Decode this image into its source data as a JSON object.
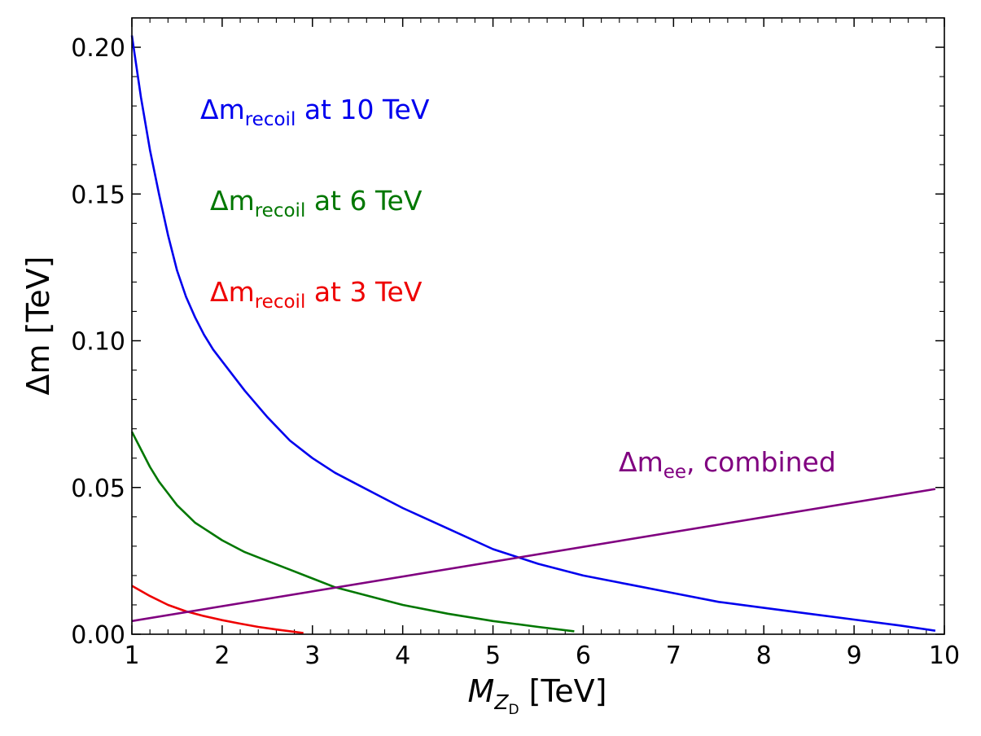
{
  "chart_data": {
    "type": "line",
    "xlabel": {
      "main": "M",
      "sub": "Z",
      "subsub": "D",
      "unit": " [TeV]"
    },
    "ylabel": {
      "main": "Δm",
      "unit": " [TeV]"
    },
    "xlim": [
      1,
      10
    ],
    "ylim": [
      0,
      0.21
    ],
    "xticks": [
      1,
      2,
      3,
      4,
      5,
      6,
      7,
      8,
      9,
      10
    ],
    "xtick_labels": [
      "1",
      "2",
      "3",
      "4",
      "5",
      "6",
      "7",
      "8",
      "9",
      "10"
    ],
    "yticks": [
      0.0,
      0.05,
      0.1,
      0.15,
      0.2
    ],
    "ytick_labels": [
      "0.00",
      "0.05",
      "0.10",
      "0.15",
      "0.20"
    ],
    "grid": false,
    "series": [
      {
        "name": "recoil-10tev",
        "color": "#0000ee",
        "label": {
          "main": "Δm",
          "sub": "recoil",
          "rest": " at 10 TeV"
        },
        "x": [
          1.0,
          1.1,
          1.2,
          1.3,
          1.4,
          1.5,
          1.6,
          1.7,
          1.8,
          1.9,
          2.0,
          2.25,
          2.5,
          2.75,
          3.0,
          3.25,
          3.5,
          3.75,
          4.0,
          4.5,
          5.0,
          5.5,
          6.0,
          6.5,
          7.0,
          7.5,
          8.0,
          8.5,
          9.0,
          9.5,
          9.9
        ],
        "y": [
          0.204,
          0.183,
          0.165,
          0.15,
          0.136,
          0.124,
          0.115,
          0.108,
          0.102,
          0.097,
          0.093,
          0.083,
          0.074,
          0.066,
          0.06,
          0.055,
          0.051,
          0.047,
          0.043,
          0.036,
          0.029,
          0.024,
          0.02,
          0.017,
          0.014,
          0.011,
          0.009,
          0.007,
          0.005,
          0.003,
          0.0012
        ]
      },
      {
        "name": "recoil-6tev",
        "color": "#007700",
        "label": {
          "main": "Δm",
          "sub": "recoil",
          "rest": " at 6 TeV"
        },
        "x": [
          1.0,
          1.1,
          1.2,
          1.3,
          1.4,
          1.5,
          1.6,
          1.7,
          1.8,
          2.0,
          2.25,
          2.5,
          2.75,
          3.0,
          3.25,
          3.5,
          3.75,
          4.0,
          4.5,
          5.0,
          5.5,
          5.9
        ],
        "y": [
          0.069,
          0.063,
          0.057,
          0.052,
          0.048,
          0.044,
          0.041,
          0.038,
          0.036,
          0.032,
          0.028,
          0.025,
          0.022,
          0.019,
          0.016,
          0.014,
          0.012,
          0.01,
          0.007,
          0.0045,
          0.0025,
          0.001
        ]
      },
      {
        "name": "recoil-3tev",
        "color": "#ee0000",
        "label": {
          "main": "Δm",
          "sub": "recoil",
          "rest": " at 3 TeV"
        },
        "x": [
          1.0,
          1.2,
          1.4,
          1.6,
          1.8,
          2.0,
          2.2,
          2.4,
          2.6,
          2.8,
          2.9
        ],
        "y": [
          0.0165,
          0.013,
          0.01,
          0.0078,
          0.0062,
          0.0048,
          0.0036,
          0.0025,
          0.0016,
          0.0008,
          0.0004
        ]
      },
      {
        "name": "ee-combined",
        "color": "#800080",
        "label": {
          "main": "Δm",
          "sub": "ee",
          "rest": ", combined"
        },
        "x": [
          1.0,
          9.9
        ],
        "y": [
          0.0045,
          0.0495
        ]
      }
    ]
  }
}
